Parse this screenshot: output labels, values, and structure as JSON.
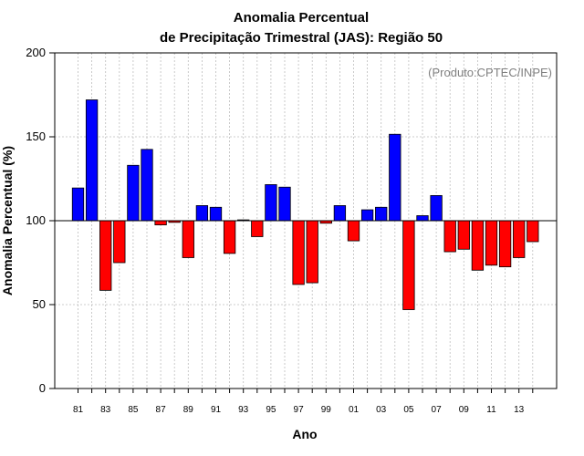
{
  "chart_data": {
    "type": "bar",
    "title": "Anomalia Percentual",
    "subtitle": "de Precipitação Trimestral (JAS): Região 50",
    "xlabel": "Ano",
    "ylabel": "Anomalia Percentual (%)",
    "annotation": "(Produto:CPTEC/INPE)",
    "ylim": [
      0,
      200
    ],
    "yticks": [
      0,
      50,
      100,
      150,
      200
    ],
    "baseline": 100,
    "grid": true,
    "above_color": "#0000ff",
    "below_color": "#ff0000",
    "categories": [
      "81",
      "82",
      "83",
      "84",
      "85",
      "86",
      "87",
      "88",
      "89",
      "90",
      "91",
      "92",
      "93",
      "94",
      "95",
      "96",
      "97",
      "98",
      "99",
      "00",
      "01",
      "02",
      "03",
      "04",
      "05",
      "06",
      "07",
      "08",
      "09",
      "10",
      "11",
      "12",
      "13",
      "14"
    ],
    "xtick_labels": [
      "81",
      "83",
      "85",
      "87",
      "89",
      "91",
      "93",
      "95",
      "97",
      "99",
      "01",
      "03",
      "05",
      "07",
      "09",
      "11",
      "13"
    ],
    "values": [
      119.5,
      172,
      58.5,
      75,
      133,
      142.5,
      97.5,
      99,
      78,
      109,
      108,
      80.5,
      100.5,
      90.5,
      121.5,
      120,
      62,
      63,
      98.5,
      109,
      88,
      106.5,
      108,
      151.5,
      47,
      103,
      115,
      81.5,
      83,
      70.5,
      73.5,
      72.5,
      78,
      87.5
    ]
  }
}
